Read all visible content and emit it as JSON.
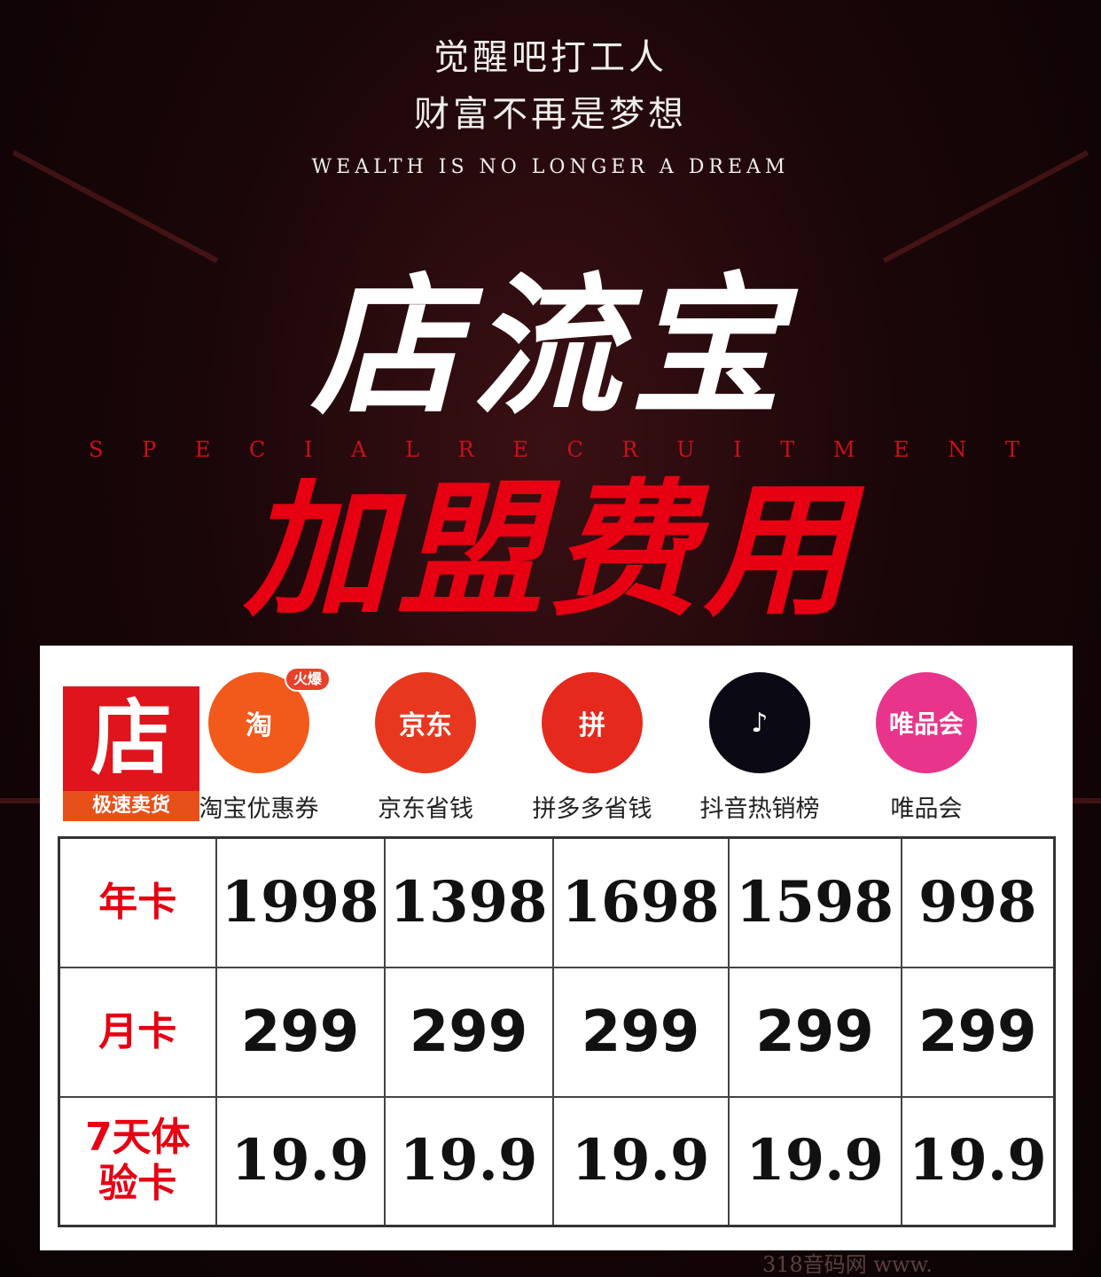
{
  "header": {
    "line1": "觉醒吧打工人",
    "line2": "财富不再是梦想",
    "english": "WEALTH IS NO LONGER A DREAM"
  },
  "title": "店流宝",
  "subtitle_en": [
    "S",
    "P",
    "E",
    "C",
    "I",
    "A",
    "L",
    "R",
    "E",
    "C",
    "R",
    "U",
    "I",
    "T",
    "M",
    "E",
    "N",
    "T"
  ],
  "fee_title": "加盟费用",
  "brand": {
    "logo_char": "店",
    "tagline": "极速卖货"
  },
  "platforms": [
    {
      "label": "淘宝优惠券",
      "icon": "taobao-icon",
      "glyph": "淘",
      "badge": "火爆",
      "color": "#f25a1c"
    },
    {
      "label": "京东省钱",
      "icon": "jd-icon",
      "glyph": "京东",
      "color": "#e8371f"
    },
    {
      "label": "拼多多省钱",
      "icon": "pinduoduo-icon",
      "glyph": "拼",
      "color": "#e5291d"
    },
    {
      "label": "抖音热销榜",
      "icon": "douyin-icon",
      "glyph": "♪",
      "color": "#0b0a14"
    },
    {
      "label": "唯品会",
      "icon": "vipshop-icon",
      "glyph": "唯品会",
      "color": "#e8348a"
    }
  ],
  "rows": [
    {
      "label": "年卡",
      "values": [
        "1998",
        "1398",
        "1698",
        "1598",
        "998"
      ]
    },
    {
      "label": "月卡",
      "values": [
        "299",
        "299",
        "299",
        "299",
        "299"
      ]
    },
    {
      "label": "7天体验卡",
      "values": [
        "19.9",
        "19.9",
        "19.9",
        "19.9",
        "19.9"
      ]
    }
  ],
  "watermark": "318音码网 www."
}
